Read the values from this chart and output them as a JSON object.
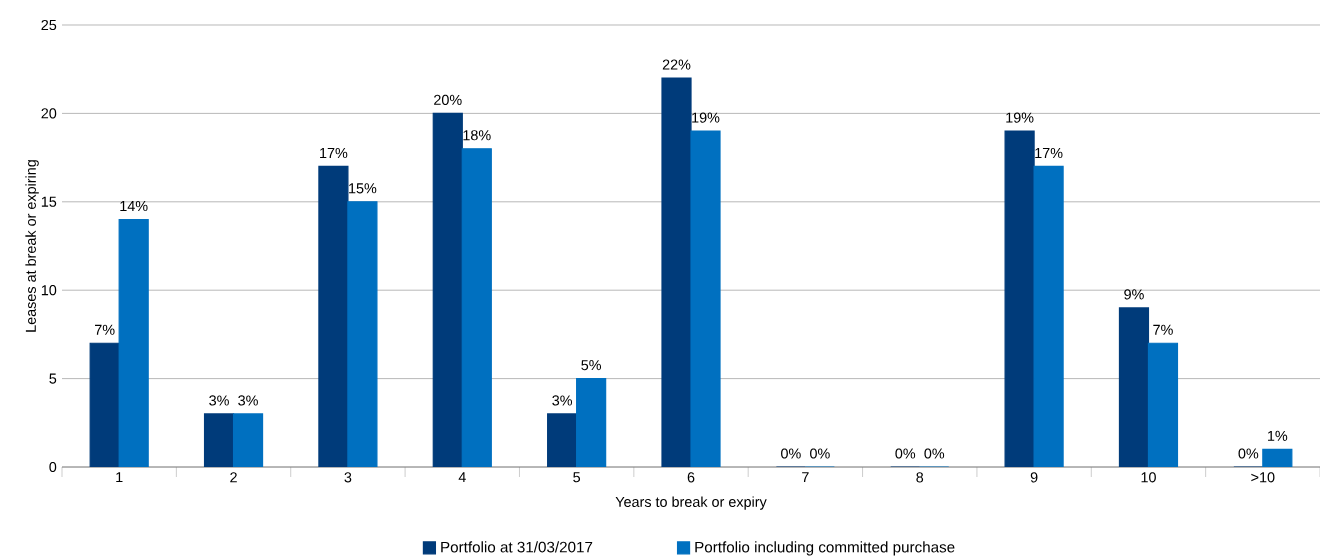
{
  "chart_data": {
    "type": "bar",
    "xlabel": "Years to break or expiry",
    "ylabel": "Leases at break or expiring",
    "categories": [
      "1",
      "2",
      "3",
      "4",
      "5",
      "6",
      "7",
      "8",
      "9",
      "10",
      ">10"
    ],
    "series": [
      {
        "name": "Portfolio at 31/03/2017",
        "color": "#003b7a",
        "values": [
          7,
          3,
          17,
          20,
          3,
          22,
          0,
          0,
          19,
          9,
          0
        ],
        "value_labels": [
          "7%",
          "3%",
          "17%",
          "20%",
          "3%",
          "22%",
          "0%",
          "0%",
          "19%",
          "9%",
          "0%"
        ]
      },
      {
        "name": "Portfolio including committed purchase",
        "color": "#0070c0",
        "values": [
          14,
          3,
          15,
          18,
          5,
          19,
          0,
          0,
          17,
          7,
          1
        ],
        "value_labels": [
          "14%",
          "3%",
          "15%",
          "18%",
          "5%",
          "19%",
          "0%",
          "0%",
          "17%",
          "7%",
          "1%"
        ]
      }
    ],
    "ylim": [
      0,
      25
    ],
    "yticks": [
      0,
      5,
      10,
      15,
      20,
      25
    ],
    "grid": "y",
    "legend": "bottom"
  }
}
